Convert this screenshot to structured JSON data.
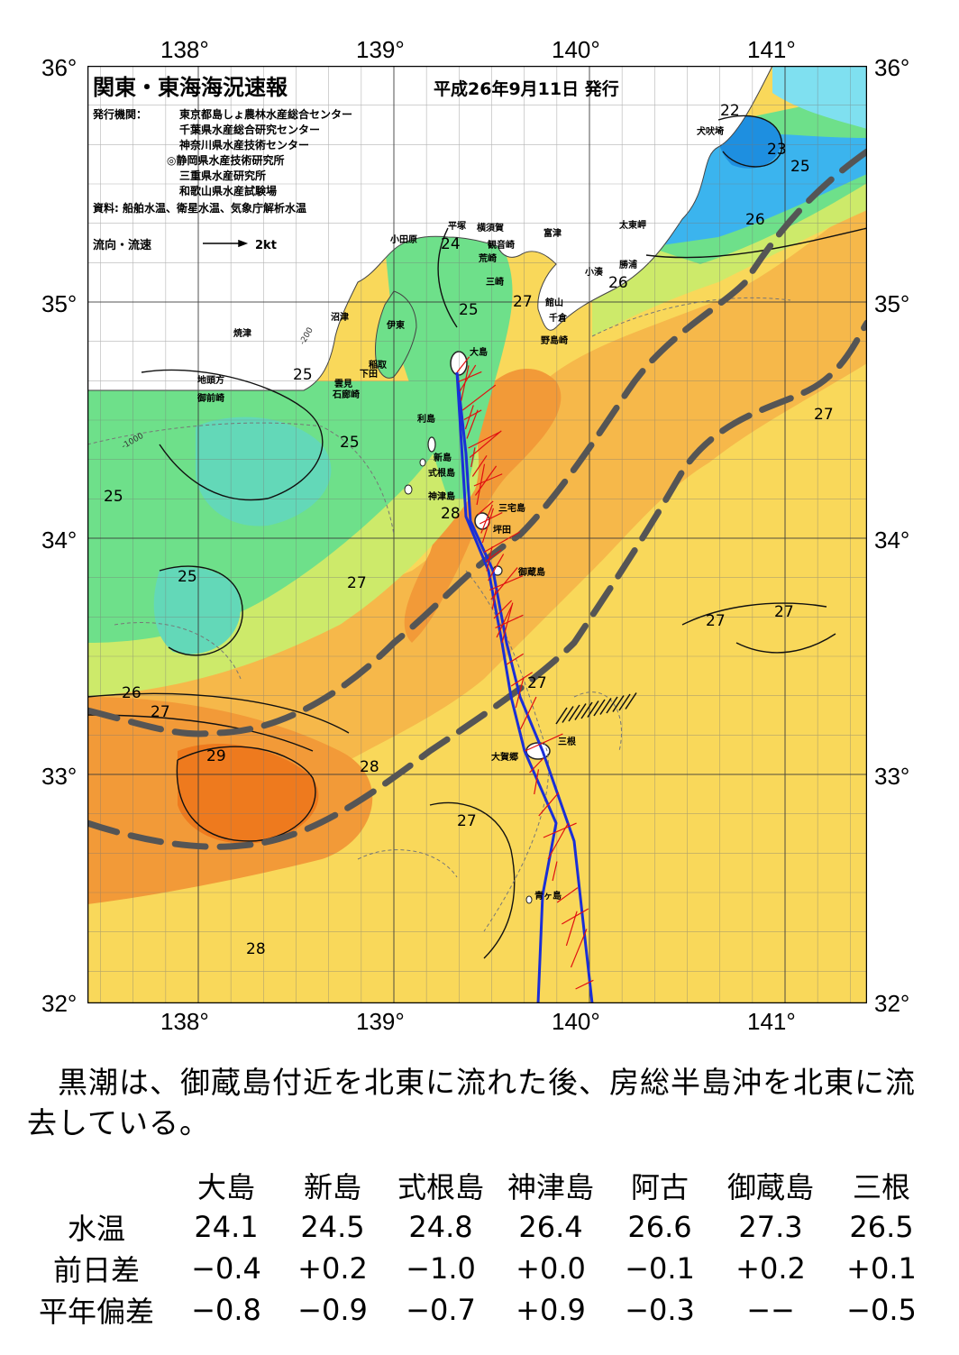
{
  "map": {
    "title": "関東・東海海況速報",
    "date": "平成26年9月11日 発行",
    "issuer_label": "発行機関：",
    "issuers": [
      "東京都島しょ農林水産総合センター",
      "千葉県水産総合研究センター",
      "神奈川県水産技術センター",
      "◎静岡県水産技術研究所",
      "三重県水産研究所",
      "和歌山県水産試験場"
    ],
    "source": "資料: 船舶水温、衛星水温、気象庁解析水温",
    "flow_legend": "流向・流速",
    "flow_scale": "2kt",
    "lon_labels": [
      "138°",
      "139°",
      "140°",
      "141°"
    ],
    "lat_labels": [
      "36°",
      "35°",
      "34°",
      "33°",
      "32°"
    ],
    "place_names": [
      "犬吠埼",
      "太東岬",
      "勝浦",
      "小湊",
      "富津",
      "館山",
      "千倉",
      "野島崎",
      "観音崎",
      "横須賀",
      "荒崎",
      "三崎",
      "平塚",
      "小田原",
      "大島",
      "沼津",
      "伊東",
      "稲取",
      "下田",
      "雲見",
      "石廊崎",
      "焼津",
      "地頭方",
      "御前崎",
      "利島",
      "新島",
      "式根島",
      "神津島",
      "三宅島",
      "坪田",
      "御蔵島",
      "三根",
      "大賀郷",
      "青ヶ島"
    ],
    "isotherm_labels": [
      "22",
      "23",
      "25",
      "26",
      "24",
      "25",
      "27",
      "26",
      "25",
      "25",
      "25",
      "25",
      "28",
      "27",
      "27",
      "27",
      "27",
      "26",
      "27",
      "29",
      "28",
      "27",
      "28",
      "27"
    ],
    "depth_labels": [
      "-200",
      "-1000"
    ],
    "colors": {
      "c22": "#1e8fe0",
      "c23": "#3bb4ee",
      "c24": "#63d8b8",
      "c25": "#6ee08a",
      "c26": "#cdea6a",
      "c27a": "#f9d85a",
      "c27b": "#f6b84a",
      "c28": "#f29a38",
      "c29": "#ee7a1e",
      "land": "#ffffff",
      "kuroshio": "#555555",
      "route": "#1a2fd6",
      "current": "#e01010"
    }
  },
  "description": "　黒潮は、御蔵島付近を北東に流れた後、房総半島沖を北東に流去している。",
  "table": {
    "columns": [
      "",
      "大島",
      "新島",
      "式根島",
      "神津島",
      "阿古",
      "御蔵島",
      "三根"
    ],
    "rows": [
      {
        "label": "水温",
        "values": [
          "24.1",
          "24.5",
          "24.8",
          "26.4",
          "26.6",
          "27.3",
          "26.5"
        ]
      },
      {
        "label": "前日差",
        "values": [
          "−0.4",
          "+0.2",
          "−1.0",
          "+0.0",
          "−0.1",
          "+0.2",
          "+0.1"
        ]
      },
      {
        "label": "平年偏差",
        "values": [
          "−0.8",
          "−0.9",
          "−0.7",
          "+0.9",
          "−0.3",
          "−−",
          "−0.5"
        ]
      }
    ]
  }
}
